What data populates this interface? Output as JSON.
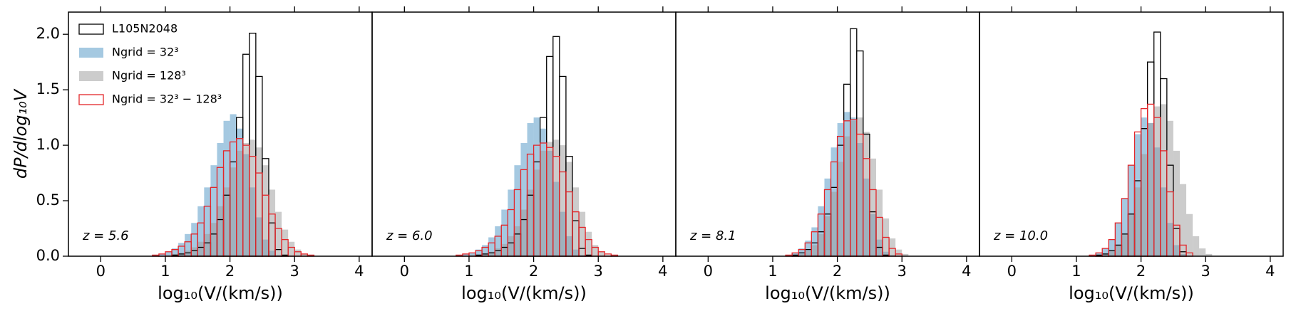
{
  "chart_data": [
    {
      "type": "histogram",
      "xlabel": "log₁₀(V/(km/s))",
      "ylabel": "dP/dlog₁₀V",
      "annotation": "z = 5.6",
      "legend": "upper left",
      "bins": [
        0.8,
        0.9,
        1.0,
        1.1,
        1.2,
        1.3,
        1.4,
        1.5,
        1.6,
        1.7,
        1.8,
        1.9,
        2.0,
        2.1,
        2.2,
        2.3,
        2.4,
        2.5,
        2.6,
        2.7,
        2.8,
        2.9,
        3.0,
        3.1,
        3.2,
        3.3,
        3.4,
        3.5
      ],
      "xlim": [
        -0.5,
        4.2
      ],
      "ylim": [
        0,
        2.2
      ],
      "xticks": [
        0,
        1,
        2,
        3,
        4
      ],
      "yticks": [
        {
          "value": 0,
          "label": "0.0"
        },
        0.5,
        {
          "value": 1,
          "label": "1.0"
        },
        1.5,
        {
          "value": 2,
          "label": "2.0"
        }
      ],
      "series": [
        {
          "name": "L105N2048",
          "color": "#000000",
          "style": "step",
          "values": [
            0,
            0,
            0,
            0.01,
            0.02,
            0.03,
            0.05,
            0.08,
            0.12,
            0.2,
            0.33,
            0.55,
            0.85,
            1.25,
            1.82,
            2.01,
            1.62,
            0.88,
            0.3,
            0.06,
            0.01,
            0,
            0,
            0,
            0,
            0,
            0
          ]
        },
        {
          "name": "Ngrid = 32³",
          "color": "#1f77b4",
          "style": "filled",
          "values": [
            0.01,
            0.02,
            0.04,
            0.07,
            0.12,
            0.2,
            0.3,
            0.45,
            0.62,
            0.82,
            1.02,
            1.22,
            1.28,
            1.15,
            0.92,
            0.62,
            0.35,
            0.15,
            0.05,
            0.01,
            0,
            0,
            0,
            0,
            0,
            0,
            0
          ]
        },
        {
          "name": "Ngrid = 128³",
          "color": "#999999",
          "style": "filled",
          "values": [
            0,
            0,
            0.01,
            0.02,
            0.03,
            0.05,
            0.08,
            0.13,
            0.2,
            0.3,
            0.45,
            0.62,
            0.8,
            0.95,
            1.02,
            1.05,
            0.98,
            0.82,
            0.6,
            0.4,
            0.24,
            0.13,
            0.06,
            0.02,
            0.01,
            0,
            0
          ]
        },
        {
          "name": "Ngrid = 32³ − 128³",
          "color": "#e3262a",
          "style": "step",
          "values": [
            0.01,
            0.02,
            0.04,
            0.06,
            0.09,
            0.13,
            0.2,
            0.3,
            0.45,
            0.62,
            0.8,
            0.95,
            1.03,
            1.06,
            1.0,
            0.9,
            0.75,
            0.55,
            0.38,
            0.25,
            0.15,
            0.08,
            0.04,
            0.02,
            0.01,
            0,
            0
          ]
        }
      ]
    },
    {
      "type": "histogram",
      "xlabel": "log₁₀(V/(km/s))",
      "annotation": "z = 6.0",
      "bins": [
        0.8,
        0.9,
        1.0,
        1.1,
        1.2,
        1.3,
        1.4,
        1.5,
        1.6,
        1.7,
        1.8,
        1.9,
        2.0,
        2.1,
        2.2,
        2.3,
        2.4,
        2.5,
        2.6,
        2.7,
        2.8,
        2.9,
        3.0,
        3.1,
        3.2,
        3.3,
        3.4,
        3.5
      ],
      "xlim": [
        -0.5,
        4.2
      ],
      "ylim": [
        0,
        2.2
      ],
      "xticks": [
        0,
        1,
        2,
        3,
        4
      ],
      "series": [
        {
          "color": "#000000",
          "style": "step",
          "values": [
            0,
            0,
            0,
            0.01,
            0.02,
            0.03,
            0.05,
            0.08,
            0.12,
            0.2,
            0.33,
            0.55,
            0.85,
            1.25,
            1.8,
            1.98,
            1.62,
            0.9,
            0.32,
            0.07,
            0.01,
            0,
            0,
            0,
            0,
            0,
            0
          ]
        },
        {
          "color": "#1f77b4",
          "style": "filled",
          "values": [
            0.01,
            0.02,
            0.03,
            0.06,
            0.1,
            0.17,
            0.27,
            0.42,
            0.6,
            0.82,
            1.02,
            1.2,
            1.25,
            1.15,
            0.95,
            0.67,
            0.4,
            0.18,
            0.06,
            0.01,
            0,
            0,
            0,
            0,
            0,
            0,
            0
          ]
        },
        {
          "color": "#999999",
          "style": "filled",
          "values": [
            0,
            0,
            0.01,
            0.01,
            0.02,
            0.04,
            0.07,
            0.11,
            0.18,
            0.27,
            0.42,
            0.6,
            0.78,
            0.95,
            1.03,
            1.05,
            1.0,
            0.85,
            0.62,
            0.4,
            0.22,
            0.1,
            0.04,
            0.01,
            0,
            0,
            0
          ]
        },
        {
          "color": "#e3262a",
          "style": "step",
          "values": [
            0.01,
            0.02,
            0.03,
            0.05,
            0.08,
            0.12,
            0.18,
            0.28,
            0.42,
            0.6,
            0.78,
            0.92,
            1.0,
            1.02,
            0.98,
            0.9,
            0.76,
            0.58,
            0.4,
            0.26,
            0.15,
            0.08,
            0.04,
            0.02,
            0.01,
            0,
            0
          ]
        }
      ]
    },
    {
      "type": "histogram",
      "xlabel": "log₁₀(V/(km/s))",
      "annotation": "z = 8.1",
      "bins": [
        0.8,
        0.9,
        1.0,
        1.1,
        1.2,
        1.3,
        1.4,
        1.5,
        1.6,
        1.7,
        1.8,
        1.9,
        2.0,
        2.1,
        2.2,
        2.3,
        2.4,
        2.5,
        2.6,
        2.7,
        2.8,
        2.9,
        3.0,
        3.1,
        3.2,
        3.3,
        3.4,
        3.5
      ],
      "xlim": [
        -0.5,
        4.2
      ],
      "ylim": [
        0,
        2.2
      ],
      "xticks": [
        0,
        1,
        2,
        3,
        4
      ],
      "series": [
        {
          "color": "#000000",
          "style": "step",
          "values": [
            0,
            0,
            0,
            0,
            0,
            0.01,
            0.03,
            0.06,
            0.12,
            0.22,
            0.38,
            0.62,
            1.0,
            1.55,
            2.05,
            1.85,
            1.1,
            0.4,
            0.08,
            0.01,
            0,
            0,
            0,
            0,
            0,
            0,
            0
          ]
        },
        {
          "color": "#1f77b4",
          "style": "filled",
          "values": [
            0,
            0,
            0,
            0,
            0.01,
            0.03,
            0.07,
            0.14,
            0.26,
            0.45,
            0.7,
            0.98,
            1.2,
            1.3,
            1.25,
            1.02,
            0.7,
            0.38,
            0.15,
            0.04,
            0.01,
            0,
            0,
            0,
            0,
            0,
            0
          ]
        },
        {
          "color": "#999999",
          "style": "filled",
          "values": [
            0,
            0,
            0,
            0,
            0,
            0.01,
            0.02,
            0.05,
            0.1,
            0.2,
            0.36,
            0.58,
            0.85,
            1.08,
            1.22,
            1.25,
            1.12,
            0.88,
            0.6,
            0.34,
            0.16,
            0.06,
            0.02,
            0,
            0,
            0,
            0
          ]
        },
        {
          "color": "#e3262a",
          "style": "step",
          "values": [
            0,
            0,
            0,
            0,
            0.01,
            0.03,
            0.06,
            0.12,
            0.22,
            0.38,
            0.6,
            0.85,
            1.08,
            1.22,
            1.23,
            1.1,
            0.88,
            0.6,
            0.35,
            0.17,
            0.07,
            0.02,
            0,
            0,
            0,
            0,
            0
          ]
        }
      ]
    },
    {
      "type": "histogram",
      "xlabel": "log₁₀(V/(km/s))",
      "annotation": "z = 10.0",
      "bins": [
        0.8,
        0.9,
        1.0,
        1.1,
        1.2,
        1.3,
        1.4,
        1.5,
        1.6,
        1.7,
        1.8,
        1.9,
        2.0,
        2.1,
        2.2,
        2.3,
        2.4,
        2.5,
        2.6,
        2.7,
        2.8,
        2.9,
        3.0,
        3.1,
        3.2,
        3.3,
        3.4,
        3.5
      ],
      "xlim": [
        -0.5,
        4.2
      ],
      "ylim": [
        0,
        2.2
      ],
      "xticks": [
        0,
        1,
        2,
        3,
        4
      ],
      "series": [
        {
          "color": "#000000",
          "style": "step",
          "values": [
            0,
            0,
            0,
            0,
            0,
            0.01,
            0.02,
            0.05,
            0.1,
            0.2,
            0.38,
            0.68,
            1.15,
            1.75,
            2.02,
            1.6,
            0.82,
            0.25,
            0.04,
            0,
            0,
            0,
            0,
            0,
            0,
            0,
            0
          ]
        },
        {
          "color": "#1f77b4",
          "style": "filled",
          "values": [
            0,
            0,
            0,
            0,
            0.01,
            0.03,
            0.07,
            0.15,
            0.3,
            0.52,
            0.82,
            1.1,
            1.25,
            1.2,
            0.98,
            0.62,
            0.3,
            0.1,
            0.02,
            0,
            0,
            0,
            0,
            0,
            0,
            0,
            0
          ]
        },
        {
          "color": "#999999",
          "style": "filled",
          "values": [
            0,
            0,
            0,
            0,
            0,
            0.01,
            0.02,
            0.05,
            0.1,
            0.2,
            0.38,
            0.62,
            0.92,
            1.2,
            1.35,
            1.37,
            1.22,
            0.95,
            0.65,
            0.38,
            0.18,
            0.07,
            0.02,
            0,
            0,
            0,
            0
          ]
        },
        {
          "color": "#e3262a",
          "style": "step",
          "values": [
            0,
            0,
            0,
            0,
            0.01,
            0.03,
            0.07,
            0.15,
            0.3,
            0.52,
            0.82,
            1.12,
            1.33,
            1.37,
            1.25,
            0.95,
            0.58,
            0.28,
            0.1,
            0.03,
            0,
            0,
            0,
            0,
            0,
            0,
            0
          ]
        }
      ]
    }
  ]
}
